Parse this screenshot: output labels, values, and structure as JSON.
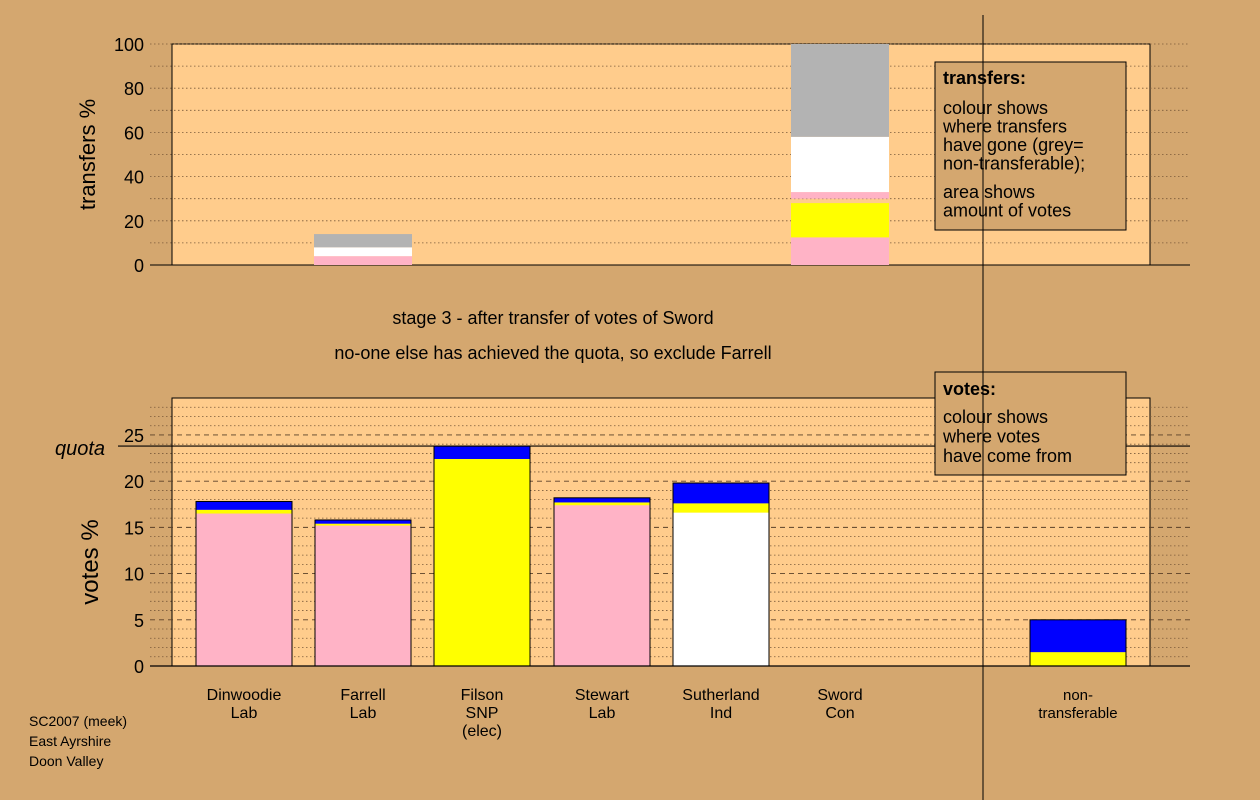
{
  "chart_data": [
    {
      "type": "bar",
      "stacked": true,
      "ylabel": "transfers %",
      "ylim": [
        0,
        100
      ],
      "yticks": [
        0,
        20,
        40,
        60,
        80,
        100
      ],
      "categories": [
        "Dinwoodie Lab",
        "Farrell Lab",
        "Filson SNP",
        "Stewart Lab",
        "Sutherland Ind",
        "Sword Con"
      ],
      "bars": [
        {
          "category": "Farrell Lab",
          "segments": [
            {
              "color": "#ffb3c6",
              "from": 0,
              "to": 4
            },
            {
              "color": "#ffffff",
              "from": 4,
              "to": 8
            },
            {
              "color": "#b3b3b3",
              "from": 8,
              "to": 14
            }
          ]
        },
        {
          "category": "Sword Con",
          "segments": [
            {
              "color": "#ffb3c6",
              "from": 0,
              "to": 12.5
            },
            {
              "color": "#ffff00",
              "from": 12.5,
              "to": 28
            },
            {
              "color": "#ffb3c6",
              "from": 30,
              "to": 33
            },
            {
              "color": "#ffffff",
              "from": 33,
              "to": 58
            },
            {
              "color": "#b3b3b3",
              "from": 58,
              "to": 100
            }
          ]
        }
      ],
      "legend": {
        "title": "transfers:",
        "lines1": [
          "colour shows",
          "where transfers",
          "have gone (grey=",
          "non-transferable);"
        ],
        "lines2": [
          "area shows",
          "amount of votes"
        ]
      }
    },
    {
      "type": "bar",
      "stacked": true,
      "ylabel": "votes %",
      "ylim": [
        0,
        29
      ],
      "yticks": [
        0,
        5,
        10,
        15,
        20,
        25
      ],
      "quota": 23.8,
      "quota_label": "quota",
      "categories": [
        {
          "lines": [
            "Dinwoodie",
            "Lab"
          ]
        },
        {
          "lines": [
            "Farrell",
            "Lab"
          ]
        },
        {
          "lines": [
            "Filson",
            "SNP",
            "(elec)"
          ]
        },
        {
          "lines": [
            "Stewart",
            "Lab"
          ]
        },
        {
          "lines": [
            "Sutherland",
            "Ind"
          ]
        },
        {
          "lines": [
            "Sword",
            "Con"
          ]
        },
        {
          "lines": [
            "non-",
            "transferable"
          ]
        }
      ],
      "bars": [
        {
          "segments": [
            {
              "color": "#ffb3c6",
              "value": 16.5
            },
            {
              "color": "#ffff00",
              "value": 0.4
            },
            {
              "color": "#0000ff",
              "value": 0.9
            }
          ]
        },
        {
          "segments": [
            {
              "color": "#ffb3c6",
              "value": 15.2
            },
            {
              "color": "#ffff00",
              "value": 0.2
            },
            {
              "color": "#0000ff",
              "value": 0.4
            }
          ]
        },
        {
          "segments": [
            {
              "color": "#ffff00",
              "value": 22.4
            },
            {
              "color": "#0000ff",
              "value": 1.4
            }
          ]
        },
        {
          "segments": [
            {
              "color": "#ffb3c6",
              "value": 17.4
            },
            {
              "color": "#ffff00",
              "value": 0.3
            },
            {
              "color": "#0000ff",
              "value": 0.5
            }
          ]
        },
        {
          "segments": [
            {
              "color": "#ffffff",
              "value": 16.6
            },
            {
              "color": "#ffff00",
              "value": 1.0
            },
            {
              "color": "#0000ff",
              "value": 2.2
            }
          ]
        },
        {
          "segments": []
        },
        {
          "segments": [
            {
              "color": "#ffff00",
              "value": 1.5
            },
            {
              "color": "#0000ff",
              "value": 3.5
            }
          ]
        }
      ],
      "legend": {
        "title": "votes:",
        "lines": [
          "colour shows",
          "where votes",
          "have come from"
        ]
      }
    }
  ],
  "stage_title": "stage 3 - after transfer of votes of Sword",
  "stage_subtitle": "no-one else has achieved the quota, so exclude Farrell",
  "footer": [
    "SC2007 (meek)",
    "East Ayrshire",
    "Doon Valley"
  ]
}
